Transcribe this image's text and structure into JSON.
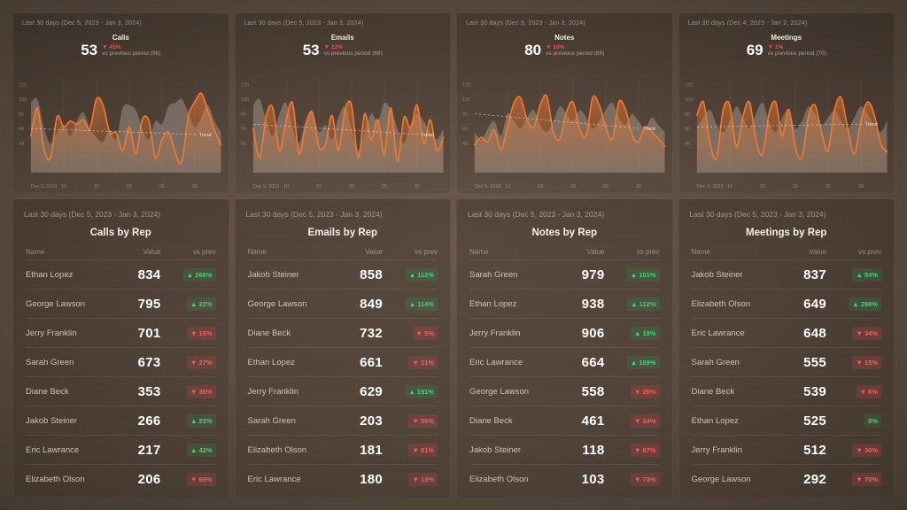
{
  "colors": {
    "accent": "#f6782a",
    "positive": "#41d47e",
    "negative": "#f26060",
    "background": "#55483e"
  },
  "chart_data": [
    {
      "type": "line",
      "title": "Calls",
      "date_range": "Last 30 days (Dec 5, 2023 - Jan 3, 2024)",
      "value": "53",
      "change": "▼ 45%",
      "vs_previous": "vs previous period (96)",
      "trend_label": "Trend",
      "ylim": [
        0,
        130
      ],
      "y_ticks": [
        "120",
        "100",
        "80",
        "60",
        "40"
      ],
      "x_ticks": [
        "Dec 5, 2023",
        "10",
        "15",
        "20",
        "25",
        "30"
      ],
      "legend": [
        "current period",
        "previous period",
        "trend"
      ],
      "series": [
        {
          "name": "current",
          "values": [
            50,
            88,
            32,
            20,
            76,
            62,
            70,
            66,
            72,
            60,
            100,
            92,
            55,
            54,
            30,
            62,
            26,
            72,
            70,
            20,
            45,
            55,
            28,
            14,
            76,
            96,
            108,
            84,
            58,
            38
          ]
        },
        {
          "name": "previous period",
          "values": [
            95,
            100,
            60,
            40,
            55,
            65,
            50,
            70,
            82,
            60,
            48,
            42,
            58,
            46,
            88,
            92,
            85,
            60,
            45,
            70,
            66,
            90,
            95,
            100,
            82,
            62,
            76,
            92,
            70,
            55
          ]
        },
        {
          "name": "trend",
          "values": [
            60,
            52
          ]
        }
      ]
    },
    {
      "type": "line",
      "title": "Emails",
      "date_range": "Last 30 days (Dec 5, 2023 - Jan 3, 2024)",
      "value": "53",
      "change": "▼ 22%",
      "vs_previous": "vs previous period (68)",
      "trend_label": "Trend",
      "ylim": [
        0,
        130
      ],
      "y_ticks": [
        "120",
        "100",
        "80",
        "60",
        "40"
      ],
      "x_ticks": [
        "Dec 5, 2023",
        "10",
        "15",
        "20",
        "25",
        "30"
      ],
      "legend": [
        "current period",
        "previous period",
        "trend"
      ],
      "series": [
        {
          "name": "current",
          "values": [
            60,
            20,
            78,
            88,
            30,
            70,
            95,
            25,
            65,
            82,
            35,
            38,
            78,
            30,
            85,
            92,
            20,
            80,
            45,
            72,
            25,
            88,
            15,
            75,
            60,
            92,
            40,
            72,
            30,
            48
          ]
        },
        {
          "name": "previous period",
          "values": [
            92,
            100,
            70,
            50,
            80,
            95,
            60,
            40,
            70,
            85,
            55,
            65,
            45,
            75,
            90,
            60,
            30,
            55,
            80,
            70,
            95,
            85,
            60,
            40,
            65,
            80,
            70,
            55,
            45,
            60
          ]
        },
        {
          "name": "trend",
          "values": [
            66,
            52
          ]
        }
      ]
    },
    {
      "type": "line",
      "title": "Notes",
      "date_range": "Last 30 days (Dec 5, 2023 - Jan 3, 2024)",
      "value": "80",
      "change": "▼ 10%",
      "vs_previous": "vs previous period (89)",
      "trend_label": "Trend",
      "ylim": [
        0,
        130
      ],
      "y_ticks": [
        "120",
        "100",
        "80",
        "60",
        "40"
      ],
      "x_ticks": [
        "Dec 5, 2023",
        "10",
        "15",
        "20",
        "25",
        "30"
      ],
      "legend": [
        "current period",
        "previous period",
        "trend"
      ],
      "series": [
        {
          "name": "current",
          "values": [
            38,
            48,
            42,
            58,
            30,
            62,
            95,
            102,
            72,
            62,
            92,
            104,
            56,
            46,
            82,
            96,
            60,
            50,
            102,
            92,
            62,
            46,
            96,
            86,
            52,
            42,
            62,
            56,
            46,
            36
          ]
        },
        {
          "name": "previous period",
          "values": [
            55,
            45,
            60,
            70,
            50,
            80,
            70,
            60,
            75,
            85,
            65,
            55,
            70,
            90,
            80,
            70,
            85,
            75,
            60,
            70,
            85,
            95,
            75,
            65,
            80,
            70,
            60,
            75,
            65,
            55
          ]
        },
        {
          "name": "trend",
          "values": [
            80,
            60
          ]
        }
      ]
    },
    {
      "type": "line",
      "title": "Meetings",
      "date_range": "Last 30 days (Dec 4, 2023 - Jan 2, 2024)",
      "value": "69",
      "change": "▼ 1%",
      "vs_previous": "vs previous period (70)",
      "trend_label": "Trend",
      "ylim": [
        0,
        130
      ],
      "y_ticks": [
        "120",
        "100",
        "80",
        "60",
        "40"
      ],
      "x_ticks": [
        "Dec 4, 2023",
        "10",
        "15",
        "20",
        "25",
        "30"
      ],
      "legend": [
        "current period",
        "previous period",
        "trend"
      ],
      "series": [
        {
          "name": "current",
          "values": [
            78,
            96,
            40,
            20,
            86,
            92,
            35,
            76,
            96,
            45,
            25,
            80,
            96,
            50,
            86,
            35,
            20,
            76,
            92,
            55,
            30,
            86,
            102,
            60,
            25,
            70,
            96,
            80,
            40,
            28
          ]
        },
        {
          "name": "previous period",
          "values": [
            60,
            75,
            85,
            65,
            55,
            70,
            90,
            75,
            60,
            80,
            95,
            70,
            55,
            75,
            85,
            60,
            70,
            90,
            80,
            65,
            75,
            85,
            70,
            60,
            75,
            90,
            80,
            65,
            55,
            70
          ]
        },
        {
          "name": "trend",
          "values": [
            62,
            66
          ]
        }
      ]
    },
    {
      "type": "table",
      "title": "Calls by Rep",
      "date_range": "Last 30 days (Dec 5, 2023 - Jan 3, 2024)",
      "columns": [
        "Name",
        "Value",
        "vs prev"
      ],
      "rows": [
        {
          "name": "Ethan Lopez",
          "value": "834",
          "change": "266%",
          "dir": "up"
        },
        {
          "name": "George Lawson",
          "value": "795",
          "change": "22%",
          "dir": "up"
        },
        {
          "name": "Jerry Franklin",
          "value": "701",
          "change": "16%",
          "dir": "down"
        },
        {
          "name": "Sarah Green",
          "value": "673",
          "change": "27%",
          "dir": "down"
        },
        {
          "name": "Diane Beck",
          "value": "353",
          "change": "36%",
          "dir": "down"
        },
        {
          "name": "Jakob Steiner",
          "value": "266",
          "change": "23%",
          "dir": "up"
        },
        {
          "name": "Eric Lawrance",
          "value": "217",
          "change": "42%",
          "dir": "up"
        },
        {
          "name": "Elizabeth Olson",
          "value": "206",
          "change": "69%",
          "dir": "down"
        }
      ]
    },
    {
      "type": "table",
      "title": "Emails by Rep",
      "date_range": "Last 30 days (Dec 5, 2023 - Jan 3, 2024)",
      "columns": [
        "Name",
        "Value",
        "vs prev"
      ],
      "rows": [
        {
          "name": "Jakob Steiner",
          "value": "858",
          "change": "112%",
          "dir": "up"
        },
        {
          "name": "George Lawson",
          "value": "849",
          "change": "114%",
          "dir": "up"
        },
        {
          "name": "Diane Beck",
          "value": "732",
          "change": "5%",
          "dir": "down"
        },
        {
          "name": "Ethan Lopez",
          "value": "661",
          "change": "21%",
          "dir": "down"
        },
        {
          "name": "Jerry Franklin",
          "value": "629",
          "change": "191%",
          "dir": "up"
        },
        {
          "name": "Sarah Green",
          "value": "203",
          "change": "56%",
          "dir": "down"
        },
        {
          "name": "Elizabeth Olson",
          "value": "181",
          "change": "81%",
          "dir": "down"
        },
        {
          "name": "Eric Lawrance",
          "value": "180",
          "change": "13%",
          "dir": "down"
        }
      ]
    },
    {
      "type": "table",
      "title": "Notes by Rep",
      "date_range": "Last 30 days (Dec 5, 2023 - Jan 3, 2024)",
      "columns": [
        "Name",
        "Value",
        "vs prev"
      ],
      "rows": [
        {
          "name": "Sarah Green",
          "value": "979",
          "change": "101%",
          "dir": "up"
        },
        {
          "name": "Ethan Lopez",
          "value": "938",
          "change": "112%",
          "dir": "up"
        },
        {
          "name": "Jerry Franklin",
          "value": "906",
          "change": "19%",
          "dir": "up"
        },
        {
          "name": "Eric Lawrance",
          "value": "664",
          "change": "109%",
          "dir": "up"
        },
        {
          "name": "George Lawson",
          "value": "558",
          "change": "26%",
          "dir": "down"
        },
        {
          "name": "Diane Beck",
          "value": "461",
          "change": "34%",
          "dir": "down"
        },
        {
          "name": "Jakob Steiner",
          "value": "118",
          "change": "87%",
          "dir": "down"
        },
        {
          "name": "Elizabeth Olson",
          "value": "103",
          "change": "73%",
          "dir": "down"
        }
      ]
    },
    {
      "type": "table",
      "title": "Meetings by Rep",
      "date_range": "Last 30 days (Dec 5, 2023 - Jan 3, 2024)",
      "columns": [
        "Name",
        "Value",
        "vs prev"
      ],
      "rows": [
        {
          "name": "Jakob Steiner",
          "value": "837",
          "change": "54%",
          "dir": "up"
        },
        {
          "name": "Elizabeth Olson",
          "value": "649",
          "change": "298%",
          "dir": "up"
        },
        {
          "name": "Eric Lawrance",
          "value": "648",
          "change": "34%",
          "dir": "down"
        },
        {
          "name": "Sarah Green",
          "value": "555",
          "change": "15%",
          "dir": "down"
        },
        {
          "name": "Diane Beck",
          "value": "539",
          "change": "6%",
          "dir": "down"
        },
        {
          "name": "Ethan Lopez",
          "value": "525",
          "change": "0%",
          "dir": "flat"
        },
        {
          "name": "Jerry Franklin",
          "value": "512",
          "change": "36%",
          "dir": "down"
        },
        {
          "name": "George Lawson",
          "value": "292",
          "change": "70%",
          "dir": "down"
        }
      ]
    }
  ]
}
